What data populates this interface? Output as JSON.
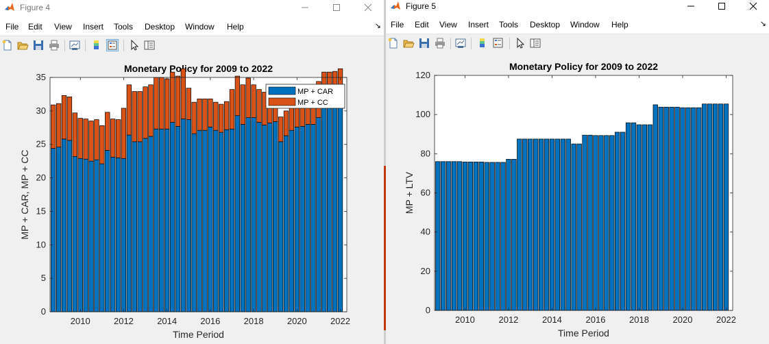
{
  "windows": [
    {
      "title": "Figure 4",
      "menu": [
        "File",
        "Edit",
        "View",
        "Insert",
        "Tools",
        "Desktop",
        "Window",
        "Help"
      ]
    },
    {
      "title": "Figure 5",
      "menu": [
        "File",
        "Edit",
        "View",
        "Insert",
        "Tools",
        "Desktop",
        "Window",
        "Help"
      ]
    }
  ],
  "colors": {
    "series_blue": "#0072BD",
    "series_orange": "#D95319",
    "figure_bg": "#f0f0f0"
  },
  "icons": [
    "new-file-icon",
    "open-folder-icon",
    "save-icon",
    "print-icon",
    "link-plot-icon",
    "colorbar-icon",
    "legend-icon",
    "pointer-icon",
    "property-inspector-icon"
  ],
  "chart_data": [
    {
      "type": "bar",
      "stacked": true,
      "title": "Monetary Policy for 2009 to 2022",
      "xlabel": "Time Period",
      "ylabel": "MP + CAR, MP + CC",
      "xlim": [
        2008.6,
        2022.3
      ],
      "ylim": [
        0,
        35
      ],
      "xticks": [
        2010,
        2012,
        2014,
        2016,
        2018,
        2020,
        2022
      ],
      "yticks": [
        0,
        5,
        10,
        15,
        20,
        25,
        30,
        35
      ],
      "legend_position": "top-right",
      "x": [
        2008.75,
        2009,
        2009.25,
        2009.5,
        2009.75,
        2010,
        2010.25,
        2010.5,
        2010.75,
        2011,
        2011.25,
        2011.5,
        2011.75,
        2012,
        2012.25,
        2012.5,
        2012.75,
        2013,
        2013.25,
        2013.5,
        2013.75,
        2014,
        2014.25,
        2014.5,
        2014.75,
        2015,
        2015.25,
        2015.5,
        2015.75,
        2016,
        2016.25,
        2016.5,
        2016.75,
        2017,
        2017.25,
        2017.5,
        2017.75,
        2018,
        2018.25,
        2018.5,
        2018.75,
        2019,
        2019.25,
        2019.5,
        2019.75,
        2020,
        2020.25,
        2020.5,
        2020.75,
        2021,
        2021.25,
        2021.5,
        2021.75,
        2022
      ],
      "series": [
        {
          "name": "MP + CAR",
          "values": [
            24.4,
            24.6,
            25.8,
            25.6,
            23.2,
            22.9,
            22.8,
            22.5,
            22.7,
            22.1,
            24.1,
            23.1,
            23.0,
            22.9,
            26.4,
            25.4,
            25.4,
            25.9,
            26.2,
            27.3,
            27.3,
            27.3,
            28.3,
            27.7,
            28.8,
            28.7,
            26.6,
            27.1,
            27.1,
            27.6,
            27.1,
            26.8,
            27.2,
            27.3,
            29.3,
            28.0,
            29.0,
            29.0,
            28.3,
            27.9,
            28.2,
            28.4,
            25.4,
            26.3,
            27.1,
            27.6,
            27.7,
            28.0,
            28.0,
            29.0,
            30.4,
            30.4,
            30.5,
            30.9
          ]
        },
        {
          "name": "MP + CC",
          "values": [
            6.5,
            6.5,
            6.5,
            6.5,
            6.5,
            6.0,
            6.0,
            6.0,
            6.0,
            5.7,
            5.7,
            5.7,
            5.7,
            7.5,
            7.5,
            7.5,
            7.5,
            7.7,
            7.7,
            7.7,
            7.7,
            7.5,
            7.5,
            7.5,
            7.5,
            4.7,
            4.7,
            4.7,
            4.7,
            4.2,
            4.2,
            4.2,
            4.2,
            5.9,
            5.9,
            5.9,
            5.9,
            4.9,
            4.9,
            4.9,
            4.9,
            3.7,
            3.7,
            3.7,
            3.7,
            3.5,
            3.5,
            3.5,
            3.5,
            5.4,
            5.4,
            5.4,
            5.4,
            5.4
          ]
        }
      ]
    },
    {
      "type": "bar",
      "title": "Monetary Policy for 2009 to 2022",
      "xlabel": "Time Period",
      "ylabel": "MP + LTV",
      "xlim": [
        2008.6,
        2022.3
      ],
      "ylim": [
        0,
        120
      ],
      "xticks": [
        2010,
        2012,
        2014,
        2016,
        2018,
        2020,
        2022
      ],
      "yticks": [
        0,
        20,
        40,
        60,
        80,
        100,
        120
      ],
      "x": [
        2008.75,
        2009,
        2009.25,
        2009.5,
        2009.75,
        2010,
        2010.25,
        2010.5,
        2010.75,
        2011,
        2011.25,
        2011.5,
        2011.75,
        2012,
        2012.25,
        2012.5,
        2012.75,
        2013,
        2013.25,
        2013.5,
        2013.75,
        2014,
        2014.25,
        2014.5,
        2014.75,
        2015,
        2015.25,
        2015.5,
        2015.75,
        2016,
        2016.25,
        2016.5,
        2016.75,
        2017,
        2017.25,
        2017.5,
        2017.75,
        2018,
        2018.25,
        2018.5,
        2018.75,
        2019,
        2019.25,
        2019.5,
        2019.75,
        2020,
        2020.25,
        2020.5,
        2020.75,
        2021,
        2021.25,
        2021.5,
        2021.75,
        2022
      ],
      "series": [
        {
          "name": "",
          "values": [
            76,
            76,
            76,
            76,
            76,
            75.8,
            75.8,
            75.8,
            75.8,
            75.6,
            75.6,
            75.6,
            75.6,
            77.2,
            77.2,
            87.5,
            87.5,
            87.5,
            87.5,
            87.5,
            87.5,
            87.5,
            87.5,
            87.5,
            87.5,
            85,
            85,
            89.5,
            89.5,
            89.3,
            89.3,
            89.3,
            89.3,
            91,
            91,
            95.8,
            95.8,
            94.8,
            94.8,
            94.8,
            105,
            103.8,
            103.8,
            103.8,
            103.8,
            103.5,
            103.5,
            103.5,
            103.5,
            105.4,
            105.4,
            105.4,
            105.4,
            105.4
          ]
        }
      ]
    }
  ]
}
